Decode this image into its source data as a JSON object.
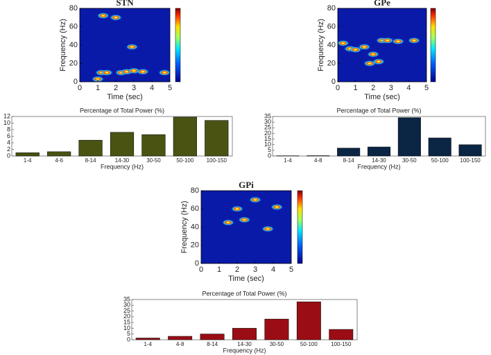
{
  "chart_data": [
    {
      "type": "spectrogram",
      "title": "STN",
      "xlabel": "Time (sec)",
      "ylabel": "Frequency (Hz)",
      "xlim": [
        0,
        5
      ],
      "xticks": [
        0,
        1,
        2,
        3,
        4,
        5
      ],
      "ylim": [
        0,
        80
      ],
      "yticks": [
        0,
        20,
        40,
        60,
        80
      ],
      "hotspots": {
        "x": [
          1.2,
          1.5,
          2.3,
          2.6,
          2.9,
          3.0,
          3.5,
          4.7,
          1.0,
          2.0,
          1.3
        ],
        "y": [
          10,
          10,
          10,
          11,
          38,
          12,
          11,
          10,
          3,
          70,
          72
        ]
      }
    },
    {
      "type": "bar",
      "title": "Percentage of Total Power (%)",
      "xlabel": "Frequency (Hz)",
      "categories": [
        "1-4",
        "4-6",
        "8-14",
        "14-30",
        "30-50",
        "50-100",
        "100-150"
      ],
      "values": [
        1,
        1.3,
        4.8,
        7.2,
        6.5,
        11.8,
        10.8
      ],
      "color": "#4a5312",
      "ylim": [
        0,
        12
      ],
      "yticks": [
        0,
        2,
        4,
        6,
        8,
        10,
        12
      ]
    },
    {
      "type": "spectrogram",
      "title": "GPe",
      "xlabel": "Time (sec)",
      "ylabel": "Frequency (Hz)",
      "xlim": [
        0,
        5
      ],
      "xticks": [
        0,
        1,
        2,
        3,
        4,
        5
      ],
      "ylim": [
        0,
        80
      ],
      "yticks": [
        0,
        20,
        40,
        60,
        80
      ],
      "hotspots": {
        "x": [
          0.3,
          0.7,
          1.0,
          1.5,
          2.0,
          2.5,
          2.8,
          3.4,
          4.3,
          1.8,
          2.3
        ],
        "y": [
          42,
          36,
          35,
          38,
          30,
          45,
          45,
          44,
          45,
          20,
          22
        ]
      }
    },
    {
      "type": "bar",
      "title": "Percentage of Total Power (%)",
      "xlabel": "Frequency (Hz)",
      "categories": [
        "1-4",
        "4-8",
        "8-14",
        "14-30",
        "30-50",
        "50-100",
        "100-150"
      ],
      "values": [
        0.2,
        0.3,
        7,
        8,
        34,
        16,
        10
      ],
      "color": "#0b2545",
      "ylim": [
        0,
        35
      ],
      "yticks": [
        0,
        5,
        10,
        15,
        20,
        25,
        30,
        35
      ]
    },
    {
      "type": "spectrogram",
      "title": "GPi",
      "xlabel": "Time (sec)",
      "ylabel": "Frequency (Hz)",
      "xlim": [
        0,
        5
      ],
      "xticks": [
        0,
        1,
        2,
        3,
        4,
        5
      ],
      "ylim": [
        0,
        80
      ],
      "yticks": [
        0,
        20,
        40,
        60,
        80
      ],
      "hotspots": {
        "x": [
          2.0,
          2.4,
          3.0,
          1.5,
          3.7,
          4.2
        ],
        "y": [
          60,
          48,
          70,
          45,
          38,
          62
        ]
      }
    },
    {
      "type": "bar",
      "title": "Percentage of Total Power (%)",
      "xlabel": "Frequency (Hz)",
      "categories": [
        "1-4",
        "4-8",
        "8-14",
        "14-30",
        "30-50",
        "50-100",
        "100-150"
      ],
      "values": [
        1.5,
        3,
        5,
        10,
        18,
        33,
        9
      ],
      "color": "#9b0d14",
      "ylim": [
        0,
        35
      ],
      "yticks": [
        0,
        5,
        10,
        15,
        20,
        25,
        30,
        35
      ]
    }
  ]
}
